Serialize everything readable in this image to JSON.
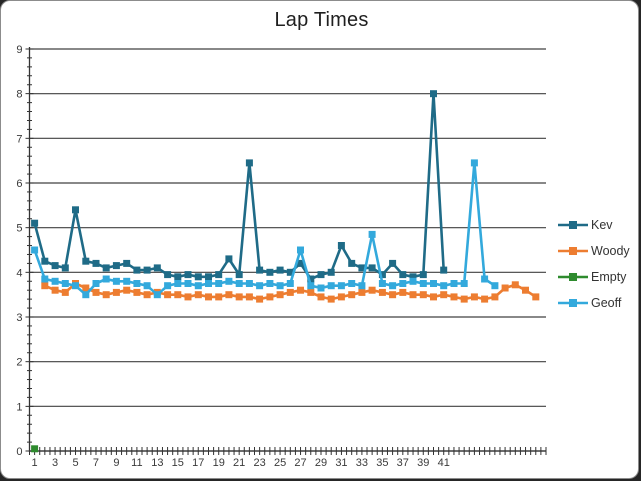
{
  "window": {
    "background": "#ffffff",
    "outside_background": "#262626",
    "border_color": "#8c8c8c"
  },
  "colors": {
    "gridline": "#404040",
    "axis_line": "#333333",
    "axis_text": "#3a3a3a",
    "title_text": "#1f1f1f"
  },
  "chart_data": {
    "type": "line",
    "title": "Lap Times",
    "xlabel": "",
    "ylabel": "",
    "ylim": [
      0,
      9
    ],
    "y_ticks": [
      0,
      1,
      2,
      3,
      4,
      5,
      6,
      7,
      8,
      9
    ],
    "y_minor_step": 0.2,
    "x_tick_labels": [
      1,
      3,
      5,
      7,
      9,
      11,
      13,
      15,
      17,
      19,
      21,
      23,
      25,
      27,
      29,
      31,
      33,
      35,
      37,
      39,
      41
    ],
    "x_minor_step": 0.5,
    "x_max": 51,
    "grid": true,
    "legend_position": "right",
    "marker": "square",
    "series": [
      {
        "name": "Kev",
        "color": "#1F6B87",
        "x_start": 1,
        "values": [
          5.1,
          4.25,
          4.15,
          4.1,
          5.4,
          4.25,
          4.2,
          4.1,
          4.15,
          4.2,
          4.05,
          4.05,
          4.1,
          3.95,
          3.9,
          3.95,
          3.9,
          3.9,
          3.95,
          4.3,
          3.95,
          6.45,
          4.05,
          4.0,
          4.05,
          4.0,
          4.2,
          3.85,
          3.95,
          4.0,
          4.6,
          4.2,
          4.1,
          4.1,
          3.95,
          4.2,
          3.95,
          3.9,
          3.95,
          8.0,
          4.05
        ]
      },
      {
        "name": "Woody",
        "color": "#ED7D31",
        "x_start": 2,
        "values": [
          3.7,
          3.6,
          3.55,
          3.75,
          3.65,
          3.55,
          3.5,
          3.55,
          3.6,
          3.55,
          3.5,
          3.55,
          3.5,
          3.5,
          3.45,
          3.5,
          3.45,
          3.45,
          3.5,
          3.45,
          3.45,
          3.4,
          3.45,
          3.5,
          3.55,
          3.6,
          3.55,
          3.45,
          3.4,
          3.45,
          3.5,
          3.55,
          3.6,
          3.55,
          3.5,
          3.55,
          3.5,
          3.5,
          3.45,
          3.5,
          3.45,
          3.4,
          3.45,
          3.4,
          3.45,
          3.65,
          3.72,
          3.6,
          3.45
        ]
      },
      {
        "name": "Empty",
        "color": "#2E8B2E",
        "x_start": 1,
        "values": [
          0.05
        ]
      },
      {
        "name": "Geoff",
        "color": "#33A9DC",
        "x_start": 1,
        "values": [
          4.5,
          3.85,
          3.8,
          3.75,
          3.7,
          3.5,
          3.75,
          3.85,
          3.8,
          3.8,
          3.75,
          3.7,
          3.5,
          3.7,
          3.75,
          3.75,
          3.7,
          3.75,
          3.75,
          3.8,
          3.75,
          3.75,
          3.7,
          3.75,
          3.7,
          3.75,
          4.5,
          3.7,
          3.65,
          3.7,
          3.7,
          3.75,
          3.7,
          4.85,
          3.75,
          3.7,
          3.75,
          3.8,
          3.75,
          3.75,
          3.7,
          3.75,
          3.75,
          6.45,
          3.85,
          3.7
        ]
      }
    ]
  }
}
